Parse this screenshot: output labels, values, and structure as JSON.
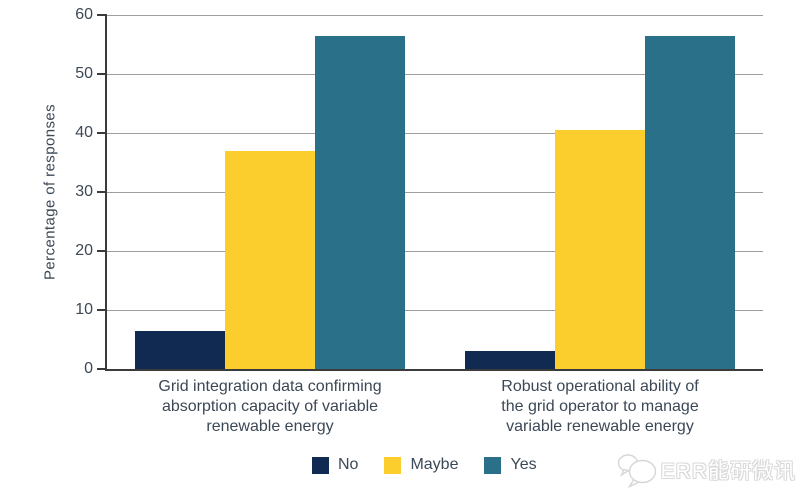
{
  "chart_data": {
    "type": "bar",
    "title": "",
    "ylabel": "Percentage of responses",
    "xlabel": "",
    "ylim": [
      0,
      60
    ],
    "yticks": [
      0,
      10,
      20,
      30,
      40,
      50,
      60
    ],
    "grid": true,
    "legend_position": "bottom-center",
    "categories": [
      "Grid integration data confirming absorption capacity of variable renewable energy",
      "Robust operational ability of the grid operator to manage variable renewable energy"
    ],
    "category_lines": [
      [
        "Grid integration data confirming",
        "absorption capacity of variable",
        "renewable energy"
      ],
      [
        "Robust operational ability of",
        "the grid operator to manage",
        "variable renewable energy"
      ]
    ],
    "series": [
      {
        "name": "No",
        "color": "#112a51",
        "values": [
          6.5,
          3
        ]
      },
      {
        "name": "Maybe",
        "color": "#fbce2d",
        "values": [
          37,
          40.5
        ]
      },
      {
        "name": "Yes",
        "color": "#2b7089",
        "values": [
          56.5,
          56.5
        ]
      }
    ],
    "axis_color": "#3b3b3b",
    "gridline_color": "#9e9e9e",
    "text_color": "#3c4856"
  },
  "watermark": {
    "text": "ERR能研微讯",
    "icon": "chat-bubbles-icon"
  }
}
